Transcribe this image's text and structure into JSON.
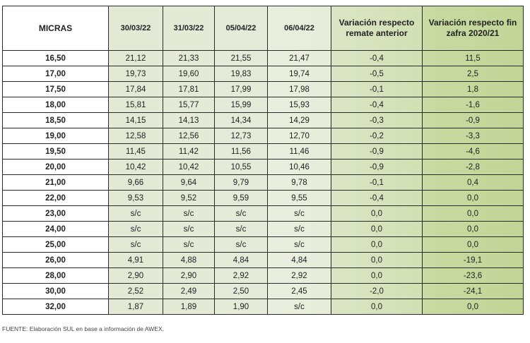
{
  "table": {
    "headers": [
      "MICRAS",
      "30/03/22",
      "31/03/22",
      "05/04/22",
      "06/04/22",
      "Variación respecto remate anterior",
      "Variación respecto fin zafra 2020/21"
    ],
    "rows": [
      [
        "16,50",
        "21,12",
        "21,33",
        "21,55",
        "21,47",
        "-0,4",
        "11,5"
      ],
      [
        "17,00",
        "19,73",
        "19,60",
        "19,83",
        "19,74",
        "-0,5",
        "2,5"
      ],
      [
        "17,50",
        "17,84",
        "17,81",
        "17,99",
        "17,98",
        "-0,1",
        "1,8"
      ],
      [
        "18,00",
        "15,81",
        "15,77",
        "15,99",
        "15,93",
        "-0,4",
        "-1,6"
      ],
      [
        "18,50",
        "14,15",
        "14,13",
        "14,34",
        "14,29",
        "-0,3",
        "-0,9"
      ],
      [
        "19,00",
        "12,58",
        "12,56",
        "12,73",
        "12,70",
        "-0,2",
        "-3,3"
      ],
      [
        "19,50",
        "11,45",
        "11,42",
        "11,56",
        "11,46",
        "-0,9",
        "-4,6"
      ],
      [
        "20,00",
        "10,42",
        "10,42",
        "10,55",
        "10,46",
        "-0,9",
        "-2,8"
      ],
      [
        "21,00",
        "9,66",
        "9,64",
        "9,79",
        "9,78",
        "-0,1",
        "0,4"
      ],
      [
        "22,00",
        "9,53",
        "9,52",
        "9,59",
        "9,55",
        "-0,4",
        "0,0"
      ],
      [
        "23,00",
        "s/c",
        "s/c",
        "s/c",
        "s/c",
        "0,0",
        "0,0"
      ],
      [
        "24,00",
        "s/c",
        "s/c",
        "s/c",
        "s/c",
        "0,0",
        "0,0"
      ],
      [
        "25,00",
        "s/c",
        "s/c",
        "s/c",
        "s/c",
        "0,0",
        "0,0"
      ],
      [
        "26,00",
        "4,91",
        "4,88",
        "4,84",
        "4,84",
        "0,0",
        "-19,1"
      ],
      [
        "28,00",
        "2,90",
        "2,90",
        "2,92",
        "2,92",
        "0,0",
        "-23,6"
      ],
      [
        "30,00",
        "2,52",
        "2,49",
        "2,50",
        "2,45",
        "-2,0",
        "-24,1"
      ],
      [
        "32,00",
        "1,87",
        "1,89",
        "1,90",
        "s/c",
        "0,0",
        "0,0"
      ]
    ]
  },
  "footer": {
    "source": "FUENTE: Elaboración SUL en base a información de AWEX."
  },
  "colors": {
    "date_columns": "#e5ead7",
    "variation_previous": "#d6e2bb",
    "variation_season": "#c5d79c",
    "border": "#2a2a2a"
  }
}
